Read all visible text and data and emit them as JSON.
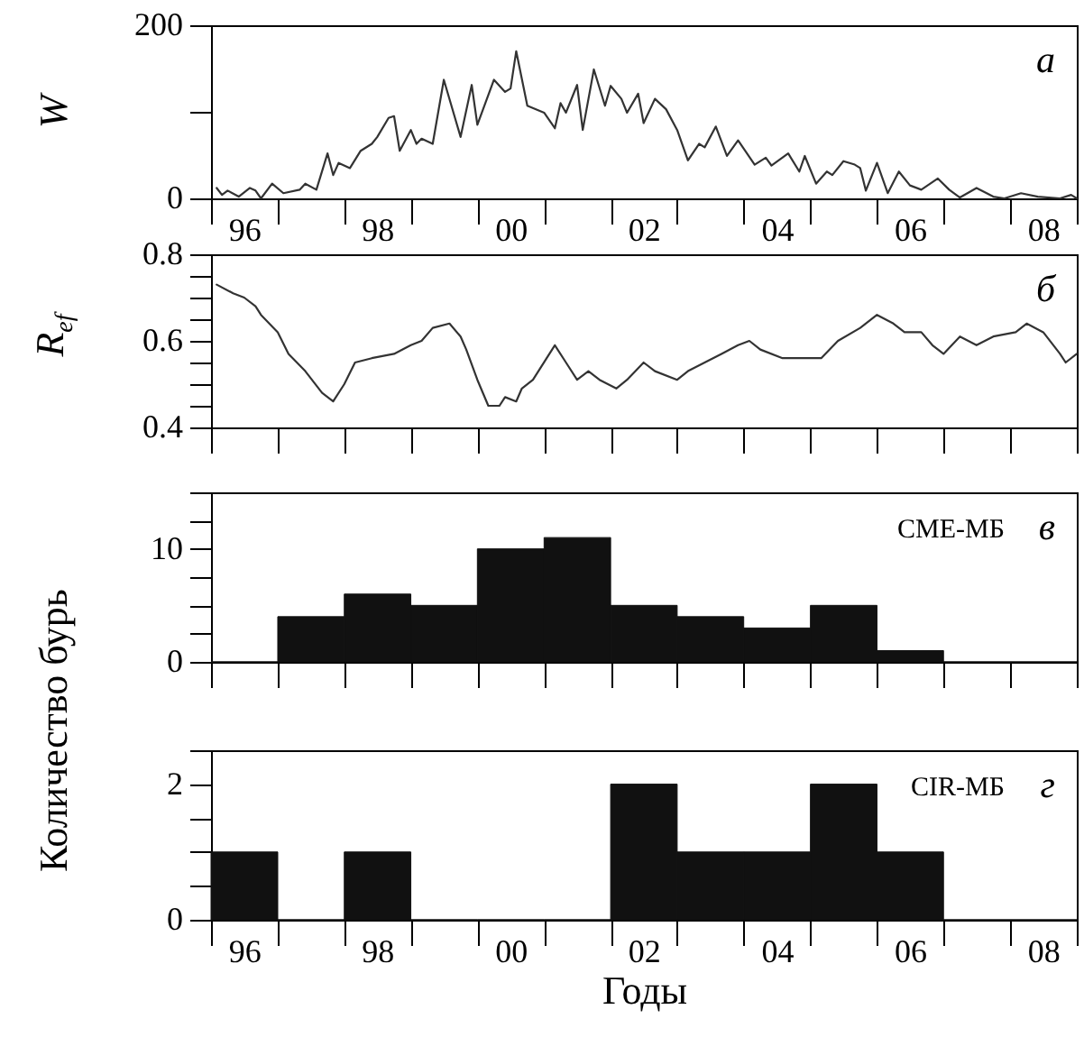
{
  "chart_data": [
    {
      "type": "line",
      "ylabel": "W",
      "annotations": [
        "а"
      ],
      "color": "#333333",
      "x": [
        "1996-02",
        "1996-03",
        "1996-04",
        "1996-06",
        "1996-08",
        "1996-09",
        "1996-10",
        "1996-12",
        "1997-02",
        "1997-05",
        "1997-06",
        "1997-08",
        "1997-10",
        "1997-11",
        "1997-12",
        "1998-02",
        "1998-04",
        "1998-06",
        "1998-07",
        "1998-09",
        "1998-10",
        "1998-11",
        "1999-01",
        "1999-02",
        "1999-03",
        "1999-05",
        "1999-07",
        "1999-10",
        "1999-12",
        "2000-01",
        "2000-04",
        "2000-06",
        "2000-07",
        "2000-08",
        "2000-10",
        "2001-01",
        "2001-03",
        "2001-04",
        "2001-05",
        "2001-07",
        "2001-08",
        "2001-10",
        "2001-12",
        "2002-01",
        "2002-03",
        "2002-04",
        "2002-06",
        "2002-07",
        "2002-09",
        "2002-11",
        "2003-01",
        "2003-03",
        "2003-05",
        "2003-06",
        "2003-08",
        "2003-10",
        "2003-12",
        "2004-03",
        "2004-05",
        "2004-06",
        "2004-09",
        "2004-11",
        "2004-12",
        "2005-02",
        "2005-04",
        "2005-05",
        "2005-07",
        "2005-09",
        "2005-10",
        "2005-11",
        "2006-01",
        "2006-03",
        "2006-05",
        "2006-07",
        "2006-09",
        "2006-12",
        "2007-02",
        "2007-04",
        "2007-07",
        "2007-10",
        "2007-12",
        "2008-03",
        "2008-06",
        "2008-10",
        "2008-12",
        "2009-01"
      ],
      "values": [
        12,
        4,
        9,
        2,
        12,
        9,
        0,
        17,
        6,
        10,
        17,
        10,
        52,
        27,
        41,
        35,
        55,
        63,
        71,
        93,
        95,
        55,
        79,
        63,
        69,
        63,
        137,
        71,
        131,
        85,
        137,
        123,
        127,
        170,
        107,
        99,
        81,
        110,
        99,
        131,
        79,
        149,
        107,
        130,
        115,
        99,
        121,
        87,
        115,
        103,
        79,
        44,
        63,
        59,
        83,
        49,
        67,
        39,
        47,
        38,
        52,
        31,
        49,
        17,
        31,
        27,
        43,
        39,
        35,
        9,
        41,
        6,
        31,
        15,
        10,
        23,
        10,
        1,
        12,
        2,
        0,
        6,
        2,
        0,
        4,
        0
      ],
      "ylim": [
        0,
        200
      ],
      "yticks": [
        0,
        {
          "value": 100,
          "label": null
        },
        200
      ],
      "xlim": [
        "1996",
        "2009"
      ],
      "xticks": [
        {
          "value": "1996",
          "label": null
        },
        {
          "value": "1996-07",
          "label": "96"
        },
        {
          "value": "1997",
          "label": null
        },
        {
          "value": "1998",
          "label": null
        },
        {
          "value": "1998-07",
          "label": "98"
        },
        {
          "value": "1999",
          "label": null
        },
        {
          "value": "2000",
          "label": null
        },
        {
          "value": "2000-07",
          "label": "00"
        },
        {
          "value": "2001",
          "label": null
        },
        {
          "value": "2002",
          "label": null
        },
        {
          "value": "2002-07",
          "label": "02"
        },
        {
          "value": "2003",
          "label": null
        },
        {
          "value": "2004",
          "label": null
        },
        {
          "value": "2004-07",
          "label": "04"
        },
        {
          "value": "2005",
          "label": null
        },
        {
          "value": "2006",
          "label": null
        },
        {
          "value": "2006-07",
          "label": "06"
        },
        {
          "value": "2007",
          "label": null
        },
        {
          "value": "2008",
          "label": null
        },
        {
          "value": "2008-07",
          "label": "08"
        },
        {
          "value": "2009",
          "label": null
        }
      ]
    },
    {
      "type": "line",
      "ylabel": "R$_{ef}$",
      "annotations": [
        "б"
      ],
      "color": "#333333",
      "x": [
        "1996-02",
        "1996-05",
        "1996-07",
        "1996-09",
        "1996-10",
        "1997-01",
        "1997-03",
        "1997-06",
        "1997-09",
        "1997-11",
        "1998-01",
        "1998-03",
        "1998-06",
        "1998-10",
        "1999-01",
        "1999-03",
        "1999-05",
        "1999-08",
        "1999-10",
        "1999-11",
        "2000-01",
        "2000-03",
        "2000-05",
        "2000-06",
        "2000-08",
        "2000-09",
        "2000-11",
        "2001-03",
        "2001-05",
        "2001-07",
        "2001-09",
        "2001-11",
        "2002-02",
        "2002-04",
        "2002-07",
        "2002-09",
        "2003-01",
        "2003-03",
        "2003-06",
        "2003-09",
        "2003-12",
        "2004-02",
        "2004-04",
        "2004-08",
        "2004-10",
        "2005-01",
        "2005-03",
        "2005-06",
        "2005-10",
        "2006-01",
        "2006-04",
        "2006-06",
        "2006-09",
        "2006-11",
        "2007-01",
        "2007-04",
        "2007-07",
        "2007-10",
        "2008-02",
        "2008-04",
        "2008-07",
        "2008-10",
        "2008-11",
        "2009-01"
      ],
      "values": [
        0.73,
        0.71,
        0.7,
        0.68,
        0.66,
        0.62,
        0.57,
        0.53,
        0.48,
        0.46,
        0.5,
        0.55,
        0.56,
        0.57,
        0.59,
        0.6,
        0.63,
        0.64,
        0.61,
        0.58,
        0.51,
        0.45,
        0.45,
        0.47,
        0.46,
        0.49,
        0.51,
        0.59,
        0.55,
        0.51,
        0.53,
        0.51,
        0.49,
        0.51,
        0.55,
        0.53,
        0.51,
        0.53,
        0.55,
        0.57,
        0.59,
        0.6,
        0.58,
        0.56,
        0.56,
        0.56,
        0.56,
        0.6,
        0.63,
        0.66,
        0.64,
        0.62,
        0.62,
        0.59,
        0.57,
        0.61,
        0.59,
        0.61,
        0.62,
        0.64,
        0.62,
        0.57,
        0.55,
        0.57
      ],
      "ylim": [
        0.4,
        0.8
      ],
      "yticks": [
        0.4,
        {
          "value": 0.45,
          "label": null
        },
        {
          "value": 0.5,
          "label": null
        },
        {
          "value": 0.55,
          "label": null
        },
        0.6,
        {
          "value": 0.65,
          "label": null
        },
        {
          "value": 0.7,
          "label": null
        },
        {
          "value": 0.75,
          "label": null
        },
        0.8
      ],
      "xlim": [
        "1996",
        "2009"
      ],
      "tick_labels": "y",
      "xticks": [
        "1996",
        "1997",
        "1998",
        "1999",
        "2000",
        "2001",
        "2002",
        "2003",
        "2004",
        "2005",
        "2006",
        "2007",
        "2008",
        "2009"
      ]
    },
    {
      "type": "histogram",
      "ylabel": "Количество бурь",
      "annotations": [
        "CME-МБ",
        "в"
      ],
      "color": "#111111",
      "bins": [
        "1996",
        "1997",
        "1998",
        "1999",
        "2000",
        "2001",
        "2002",
        "2003",
        "2004",
        "2005",
        "2006",
        "2007",
        "2008",
        "2009"
      ],
      "values": [
        0,
        4,
        6,
        5,
        10,
        11,
        5,
        4,
        3,
        5,
        1,
        0,
        0
      ],
      "ylim": [
        0,
        15
      ],
      "yticks": [
        0,
        {
          "value": 2.5,
          "label": null
        },
        {
          "value": 5,
          "label": null
        },
        {
          "value": 7.5,
          "label": null
        },
        10,
        {
          "value": 12.5,
          "label": null
        },
        {
          "value": 15,
          "label": null
        }
      ],
      "xlim": [
        "1996",
        "2009"
      ],
      "tick_labels": "y",
      "xticks": [
        "1996",
        "1997",
        "1998",
        "1999",
        "2000",
        "2001",
        "2002",
        "2003",
        "2004",
        "2005",
        "2006",
        "2007",
        "2008",
        "2009"
      ]
    },
    {
      "type": "histogram",
      "xlabel": "Годы",
      "annotations": [
        "CIR-МБ",
        "г"
      ],
      "color": "#111111",
      "bins": [
        "1996",
        "1997",
        "1998",
        "1999",
        "2000",
        "2001",
        "2002",
        "2003",
        "2004",
        "2005",
        "2006",
        "2007",
        "2008",
        "2009"
      ],
      "values": [
        1,
        0,
        1,
        0,
        0,
        0,
        2,
        1,
        1,
        2,
        1,
        0,
        0
      ],
      "ylim": [
        0,
        2.5
      ],
      "yticks": [
        0,
        {
          "value": 0.5,
          "label": null
        },
        {
          "value": 1,
          "label": null
        },
        {
          "value": 1.5,
          "label": null
        },
        2,
        {
          "value": 2.5,
          "label": null
        }
      ],
      "xlim": [
        "1996",
        "2009"
      ],
      "xticks": [
        {
          "value": "1996",
          "label": null
        },
        {
          "value": "1996-07",
          "label": "96"
        },
        {
          "value": "1997",
          "label": null
        },
        {
          "value": "1998",
          "label": null
        },
        {
          "value": "1998-07",
          "label": "98"
        },
        {
          "value": "1999",
          "label": null
        },
        {
          "value": "2000",
          "label": null
        },
        {
          "value": "2000-07",
          "label": "00"
        },
        {
          "value": "2001",
          "label": null
        },
        {
          "value": "2002",
          "label": null
        },
        {
          "value": "2002-07",
          "label": "02"
        },
        {
          "value": "2003",
          "label": null
        },
        {
          "value": "2004",
          "label": null
        },
        {
          "value": "2004-07",
          "label": "04"
        },
        {
          "value": "2005",
          "label": null
        },
        {
          "value": "2006",
          "label": null
        },
        {
          "value": "2006-07",
          "label": "06"
        },
        {
          "value": "2007",
          "label": null
        },
        {
          "value": "2008",
          "label": null
        },
        {
          "value": "2008-07",
          "label": "08"
        },
        {
          "value": "2009",
          "label": null
        }
      ]
    }
  ]
}
